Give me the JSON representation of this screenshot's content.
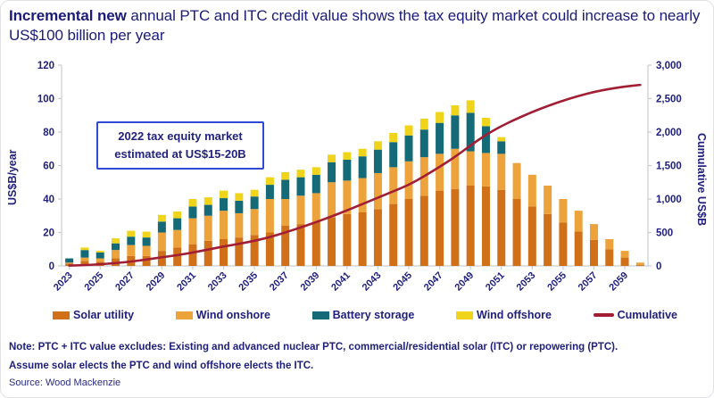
{
  "title": {
    "bold": "Incremental new",
    "rest": " annual PTC and ITC credit value shows the tax equity market could increase to nearly US$100 billion per year"
  },
  "annotation": {
    "text": "2022 tax equity market estimated at US$15-20B"
  },
  "axes": {
    "left_title": "US$B/year",
    "right_title": "Cumulative US$B"
  },
  "legend": {
    "items": [
      {
        "label": "Solar utility",
        "color": "#d0711a",
        "swatch": "bar"
      },
      {
        "label": "Wind onshore",
        "color": "#eda33c",
        "swatch": "bar"
      },
      {
        "label": "Battery storage",
        "color": "#156a77",
        "swatch": "bar"
      },
      {
        "label": "Wind offshore",
        "color": "#f0d41c",
        "swatch": "bar"
      },
      {
        "label": "Cumulative",
        "color": "#a21e35",
        "swatch": "line"
      }
    ]
  },
  "notes": {
    "line1": "Note: PTC + ITC value excludes: Existing and advanced nuclear PTC, commercial/residential solar (ITC) or repowering (PTC).",
    "line2": "Assume solar elects the PTC and wind offshore elects the ITC."
  },
  "source": "Source: Wood Mackenzie",
  "colors": {
    "text_navy": "#21217d",
    "axis_gray": "#c9cdd1",
    "solar": "#d0711a",
    "wind_onshore": "#eda33c",
    "battery": "#156a77",
    "wind_offshore": "#f0d41c",
    "cumulative_line": "#a21e35"
  },
  "chart_data": {
    "type": "bar",
    "subtype": "stacked-bars-with-cumulative-line",
    "title": "Incremental new annual PTC and ITC credit value",
    "x": [
      2023,
      2024,
      2025,
      2026,
      2027,
      2028,
      2029,
      2030,
      2031,
      2032,
      2033,
      2034,
      2035,
      2036,
      2037,
      2038,
      2039,
      2040,
      2041,
      2042,
      2043,
      2044,
      2045,
      2046,
      2047,
      2048,
      2049,
      2050,
      2051,
      2052,
      2053,
      2054,
      2055,
      2056,
      2057,
      2058,
      2059,
      2060
    ],
    "x_labels": [
      "2023",
      "2025",
      "2027",
      "2029",
      "2031",
      "2033",
      "2035",
      "2037",
      "2039",
      "2041",
      "2043",
      "2045",
      "2047",
      "2049",
      "2051",
      "2053",
      "2055",
      "2057",
      "2059"
    ],
    "x_label_every": 2,
    "series": [
      {
        "name": "Solar utility",
        "type": "bar",
        "axis": "left",
        "color": "#d0711a",
        "values": [
          1.5,
          3,
          2.5,
          4.5,
          6,
          6,
          9,
          11,
          13,
          15,
          16,
          17,
          18.5,
          20,
          24,
          25,
          26.5,
          29,
          31,
          32,
          34,
          37,
          40,
          42,
          45,
          46,
          48,
          47.5,
          45.5,
          40,
          35.5,
          31,
          26,
          20.5,
          15.5,
          10,
          5,
          0.5
        ]
      },
      {
        "name": "Wind onshore",
        "type": "bar",
        "axis": "left",
        "color": "#eda33c",
        "values": [
          0.5,
          2,
          2,
          5,
          6.5,
          6,
          11,
          10.5,
          15.5,
          15,
          17,
          14.5,
          15.5,
          20,
          16,
          17,
          17,
          21,
          20,
          20.5,
          21.5,
          22,
          22.5,
          23,
          22,
          24,
          20.5,
          20,
          21.5,
          21.5,
          19,
          17,
          14,
          12.5,
          9.5,
          6,
          4,
          1.5
        ]
      },
      {
        "name": "Battery storage",
        "type": "bar",
        "axis": "left",
        "color": "#156a77",
        "values": [
          2.5,
          4.5,
          3.5,
          4,
          5,
          5,
          6.5,
          7,
          7,
          6.5,
          7.5,
          7.5,
          7.5,
          8.5,
          11.5,
          11,
          11,
          12,
          12.5,
          13,
          14,
          15,
          15.5,
          16.5,
          18.5,
          20,
          23,
          16,
          7.5,
          0,
          0,
          0,
          0,
          0,
          0,
          0,
          0,
          0
        ]
      },
      {
        "name": "Wind offshore",
        "type": "bar",
        "axis": "left",
        "color": "#f0d41c",
        "values": [
          0,
          1.5,
          1,
          3,
          3.5,
          3.5,
          4,
          4,
          4.5,
          4.5,
          4.5,
          4.5,
          4,
          4.5,
          4.5,
          4.5,
          4.5,
          4.5,
          4.5,
          4.5,
          5,
          5.5,
          6,
          6.5,
          6.5,
          6,
          7.5,
          5,
          2.5,
          0,
          0,
          0,
          0,
          0,
          0,
          0,
          0,
          0
        ]
      },
      {
        "name": "Cumulative",
        "type": "line",
        "axis": "right",
        "color": "#a21e35",
        "values": [
          5,
          12,
          25,
          42,
          65,
          95,
          130,
          160,
          200,
          245,
          290,
          330,
          375,
          430,
          500,
          575,
          655,
          740,
          830,
          925,
          1020,
          1115,
          1210,
          1340,
          1480,
          1630,
          1800,
          1960,
          2090,
          2200,
          2300,
          2390,
          2470,
          2540,
          2600,
          2645,
          2680,
          2705
        ]
      }
    ],
    "left_axis": {
      "label": "US$B/year",
      "min": 0,
      "max": 120,
      "step": 20
    },
    "right_axis": {
      "label": "Cumulative US$B",
      "min": 0,
      "max": 3000,
      "step": 500
    },
    "grid": false,
    "legend_position": "bottom",
    "annotations": [
      "2022 tax equity market estimated at US$15-20B"
    ]
  }
}
